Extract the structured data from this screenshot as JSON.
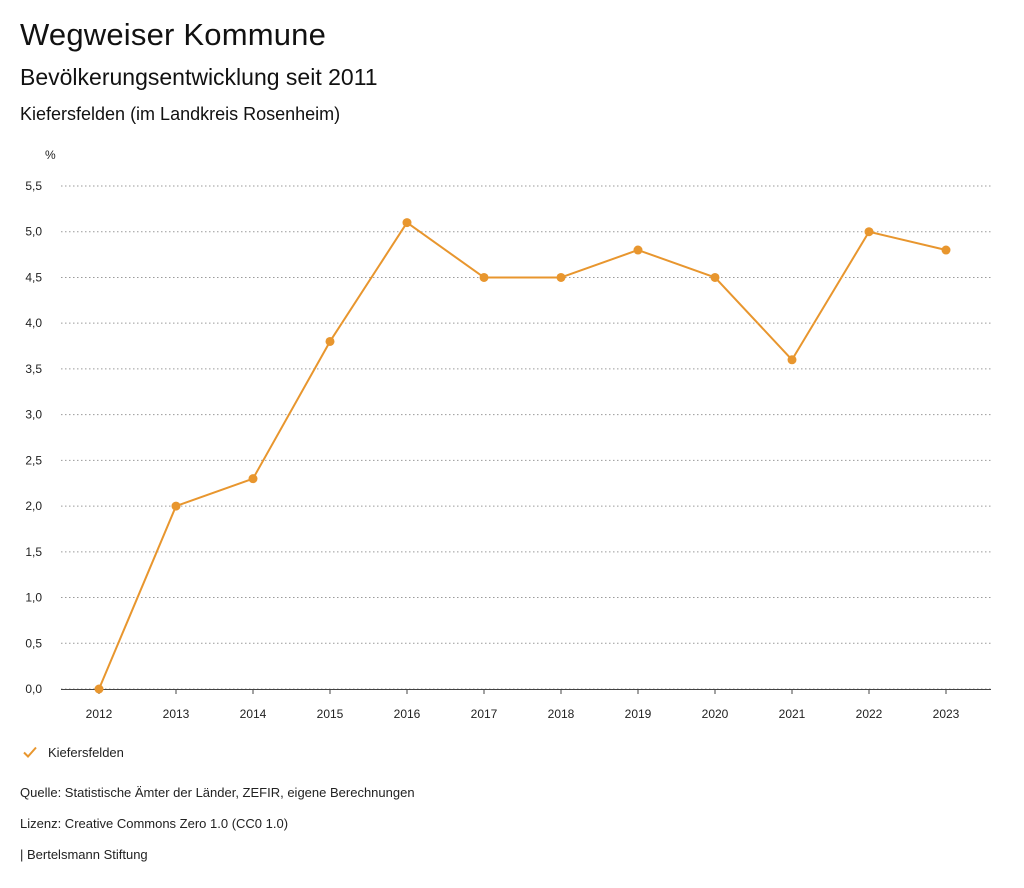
{
  "header": {
    "title": "Wegweiser Kommune",
    "subtitle": "Bevölkerungsentwicklung seit 2011",
    "region": "Kiefersfelden (im Landkreis Rosenheim)"
  },
  "chart_data": {
    "type": "line",
    "title": "Bevölkerungsentwicklung seit 2011",
    "ylabel": "%",
    "xlabel": "",
    "ylim": [
      0,
      5.5
    ],
    "yticks": [
      "0,0",
      "0,5",
      "1,0",
      "1,5",
      "2,0",
      "2,5",
      "3,0",
      "3,5",
      "4,0",
      "4,5",
      "5,0",
      "5,5"
    ],
    "categories": [
      "2012",
      "2013",
      "2014",
      "2015",
      "2016",
      "2017",
      "2018",
      "2019",
      "2020",
      "2021",
      "2022",
      "2023"
    ],
    "series": [
      {
        "name": "Kiefersfelden",
        "color": "#e8962e",
        "values": [
          0.0,
          2.0,
          2.3,
          3.8,
          5.1,
          4.5,
          4.5,
          4.8,
          4.5,
          3.6,
          5.0,
          4.8
        ]
      }
    ],
    "grid": true,
    "legend": "bottom-left"
  },
  "legend": {
    "label": "Kiefersfelden",
    "icon": "check-icon"
  },
  "footer": {
    "source": "Quelle: Statistische Ämter der Länder, ZEFIR, eigene Berechnungen",
    "license": "Lizenz: Creative Commons Zero 1.0 (CC0 1.0)",
    "brand": "| Bertelsmann Stiftung"
  }
}
